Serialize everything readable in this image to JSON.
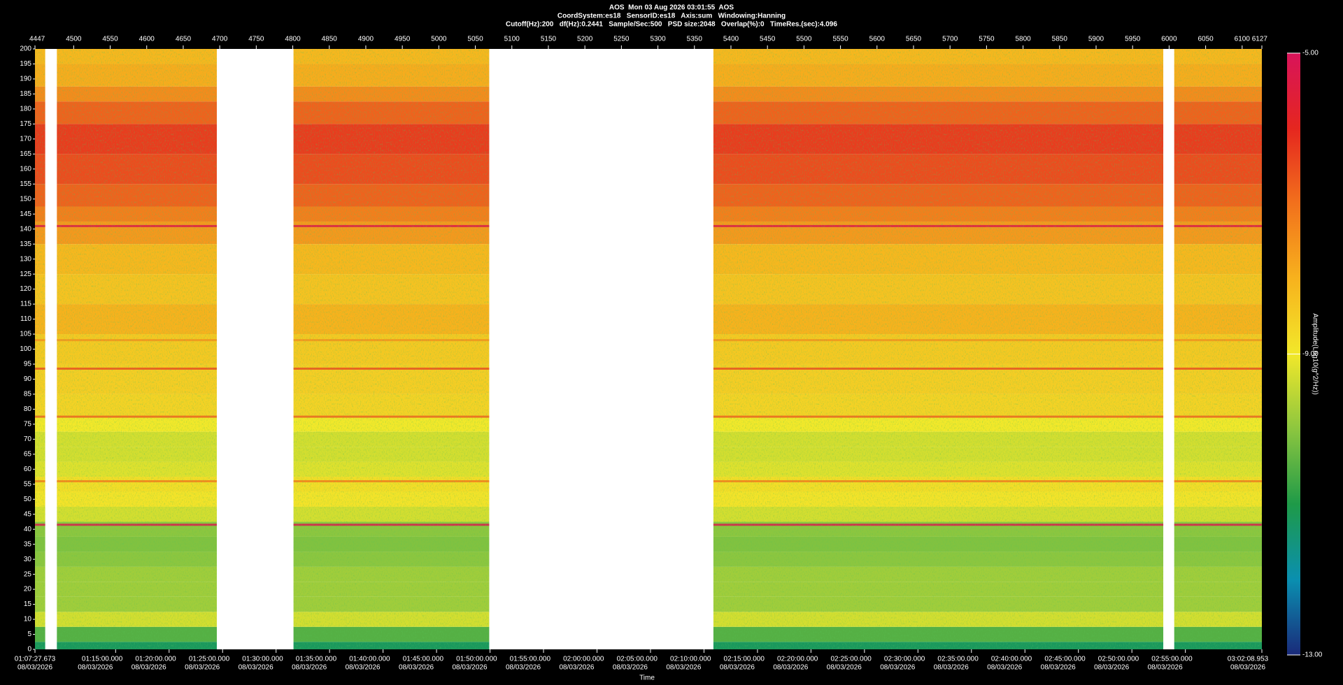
{
  "chart_data": {
    "type": "spectrogram",
    "title": "AOS  Mon 03 Aug 2026 03:01:55  AOS",
    "subtitle": "CoordSystem:es18   SensorID:es18   Axis:sum   Windowing:Hanning",
    "settings_line": "Cutoff(Hz):200   df(Hz):0.2441   Sample/Sec:500   PSD size:2048   Overlap(%):0   TimeRes.(sec):4.096",
    "xlim": [
      4447,
      6127
    ],
    "xticks": [
      4447,
      4500,
      4550,
      4600,
      4650,
      4700,
      4750,
      4800,
      4850,
      4900,
      4950,
      5000,
      5050,
      5100,
      5150,
      5200,
      5250,
      5300,
      5350,
      5400,
      5450,
      5500,
      5550,
      5600,
      5650,
      5700,
      5750,
      5800,
      5850,
      5900,
      5950,
      6000,
      6050,
      6100,
      6127
    ],
    "x2label": "Time",
    "x2_date": "08/03/2026",
    "x2ticks": [
      {
        "value": 4447,
        "label": "01:07:27.673"
      },
      {
        "value": 4557.43,
        "label": "01:15:00.000"
      },
      {
        "value": 4630.67,
        "label": "01:20:00.000"
      },
      {
        "value": 4703.91,
        "label": "01:25:00.000"
      },
      {
        "value": 4777.15,
        "label": "01:30:00.000"
      },
      {
        "value": 4850.4,
        "label": "01:35:00.000"
      },
      {
        "value": 4923.64,
        "label": "01:40:00.000"
      },
      {
        "value": 4996.88,
        "label": "01:45:00.000"
      },
      {
        "value": 5070.12,
        "label": "01:50:00.000"
      },
      {
        "value": 5143.37,
        "label": "01:55:00.000"
      },
      {
        "value": 5216.61,
        "label": "02:00:00.000"
      },
      {
        "value": 5289.85,
        "label": "02:05:00.000"
      },
      {
        "value": 5363.09,
        "label": "02:10:00.000"
      },
      {
        "value": 5436.34,
        "label": "02:15:00.000"
      },
      {
        "value": 5509.58,
        "label": "02:20:00.000"
      },
      {
        "value": 5582.82,
        "label": "02:25:00.000"
      },
      {
        "value": 5656.06,
        "label": "02:30:00.000"
      },
      {
        "value": 5729.3,
        "label": "02:35:00.000"
      },
      {
        "value": 5802.55,
        "label": "02:40:00.000"
      },
      {
        "value": 5875.79,
        "label": "02:45:00.000"
      },
      {
        "value": 5949.03,
        "label": "02:50:00.000"
      },
      {
        "value": 6022.27,
        "label": "02:55:00.000"
      },
      {
        "value": 6127,
        "label": "03:02:08.953"
      }
    ],
    "ylim": [
      0,
      200
    ],
    "yticks": [
      0,
      5,
      10,
      15,
      20,
      25,
      30,
      35,
      40,
      45,
      50,
      55,
      60,
      65,
      70,
      75,
      80,
      85,
      90,
      95,
      100,
      105,
      110,
      115,
      120,
      125,
      130,
      135,
      140,
      145,
      150,
      155,
      160,
      165,
      170,
      175,
      180,
      185,
      190,
      195,
      200
    ],
    "segments": [
      [
        4447,
        4461
      ],
      [
        4477,
        4696
      ],
      [
        4801,
        5069
      ],
      [
        5376,
        5992
      ],
      [
        6007,
        6127
      ]
    ],
    "profile": {
      "freq": [
        0,
        5,
        10,
        15,
        20,
        25,
        30,
        35,
        40,
        45,
        50,
        55,
        60,
        65,
        70,
        75,
        80,
        90,
        100,
        110,
        120,
        130,
        140,
        145,
        150,
        160,
        170,
        180,
        185,
        190,
        200
      ],
      "amplitude": [
        -11.2,
        -10.5,
        -9.3,
        -9.8,
        -9.8,
        -9.8,
        -10,
        -10.1,
        -10,
        -9.3,
        -8.9,
        -8.8,
        -9.2,
        -9.3,
        -9.3,
        -9,
        -8.6,
        -8.5,
        -8.4,
        -8,
        -8.3,
        -8.1,
        -7.6,
        -7.2,
        -6.8,
        -6.5,
        -6.3,
        -6.8,
        -7.4,
        -7.9,
        -8.1
      ]
    },
    "spectral_lines": {
      "freq": [
        141,
        93.5,
        56,
        103,
        77.5,
        41.5
      ],
      "amplitude": [
        -5.3,
        -6.5,
        -7.2,
        -7.5,
        -6.8,
        -5.2
      ]
    },
    "colorbar": {
      "label": "Amplitude(Log10(g^2/Hz))",
      "lim": [
        -13,
        -5
      ],
      "ticks": [
        {
          "value": -5,
          "label": "-5.00"
        },
        {
          "value": -9,
          "label": "-9.00"
        },
        {
          "value": -13,
          "label": "-13.00"
        }
      ],
      "colormap": [
        "#1a2a7a",
        "#0a8fb0",
        "#1e9a48",
        "#8cc63f",
        "#f2e82a",
        "#f7b21d",
        "#f2711c",
        "#e5261f",
        "#d8145a"
      ]
    }
  }
}
